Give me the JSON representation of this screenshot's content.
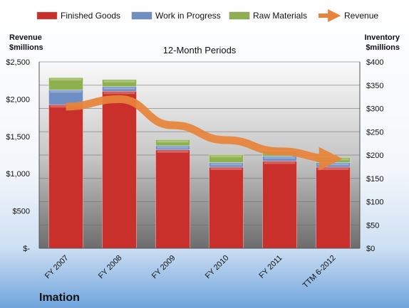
{
  "chart_data": {
    "type": "bar",
    "title": "Imation",
    "subtitle": "12-Month Periods",
    "left_axis_label_line1": "Revenue",
    "left_axis_label_line2": "$millions",
    "right_axis_label_line1": "Inventory",
    "right_axis_label_line2": "$millions",
    "categories": [
      "FY 2007",
      "FY 2008",
      "FY 2009",
      "FY 2010",
      "FY 2011",
      "TTM 6-2012"
    ],
    "left_ylim": [
      0,
      2500
    ],
    "right_ylim": [
      0,
      400
    ],
    "left_ticks": [
      "$-",
      "$500",
      "$1,000",
      "$1,500",
      "$2,000",
      "$2,500"
    ],
    "right_ticks": [
      "$0",
      "$50",
      "$100",
      "$150",
      "$200",
      "$250",
      "$300",
      "$350",
      "$400"
    ],
    "grid": true,
    "legend_position": "top",
    "stacked_series": [
      {
        "name": "Finished Goods",
        "axis": "right",
        "color": "#c9302c",
        "values": [
          308,
          337,
          211,
          174,
          187,
          174
        ]
      },
      {
        "name": "Work in Progress",
        "axis": "right",
        "color": "#6f8fc4",
        "values": [
          32,
          10,
          9,
          10,
          11,
          10
        ]
      },
      {
        "name": "Raw Materials",
        "axis": "right",
        "color": "#8fb04e",
        "values": [
          26,
          15,
          13,
          17,
          10,
          11
        ]
      }
    ],
    "line_series": [
      {
        "name": "Revenue",
        "axis": "left",
        "color": "#e8843a",
        "values": [
          1900,
          2000,
          1650,
          1450,
          1300,
          1200
        ]
      }
    ]
  }
}
